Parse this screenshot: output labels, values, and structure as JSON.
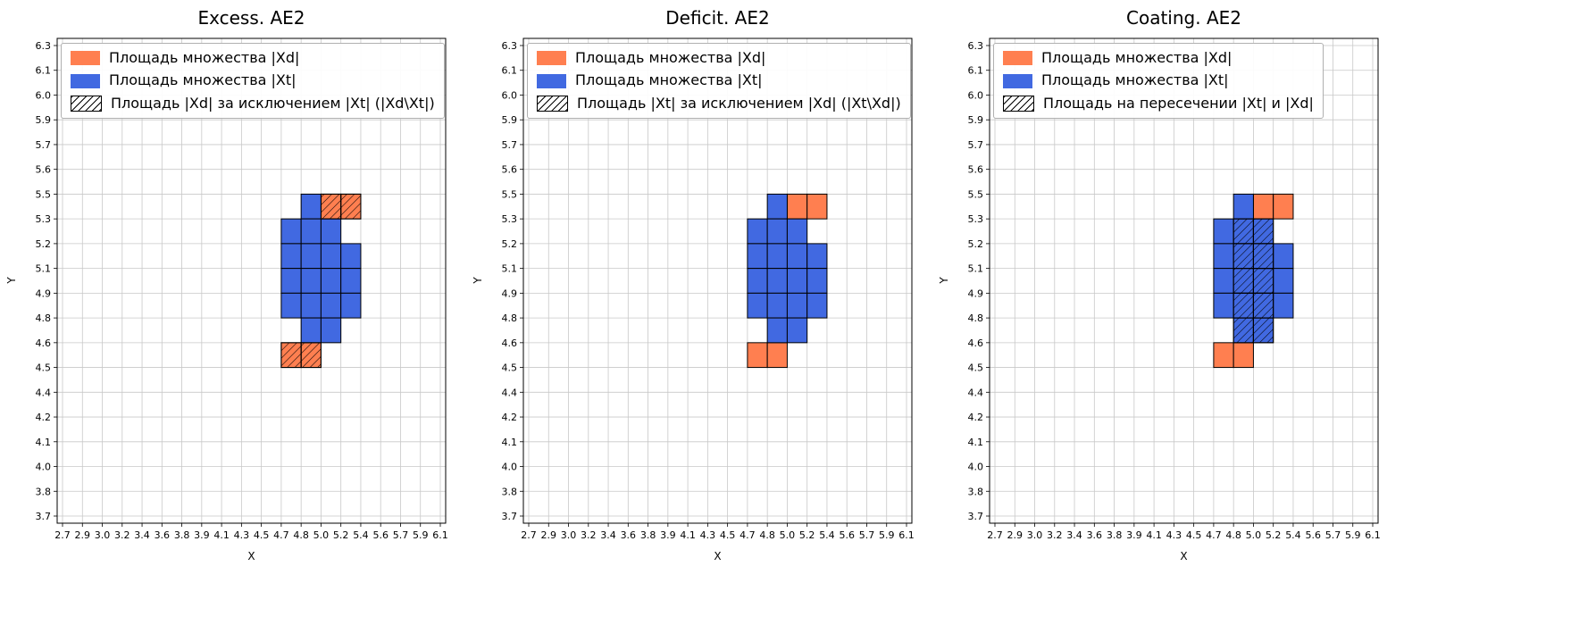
{
  "colors": {
    "xd_fill": "#ff7f50",
    "xt_fill": "#4169e1",
    "cell_edge": "#000000",
    "grid": "#c8c8c8",
    "spine": "#000000",
    "legend_border": "#b0b0b0",
    "background": "#ffffff"
  },
  "chart_data": [
    {
      "type": "heatmap",
      "title": "Excess. AE2",
      "xlabel": "X",
      "ylabel": "Y",
      "x_ticks": [
        2.7,
        2.9,
        3.0,
        3.2,
        3.4,
        3.6,
        3.8,
        3.9,
        4.1,
        4.3,
        4.5,
        4.7,
        4.8,
        5.0,
        5.2,
        5.4,
        5.6,
        5.7,
        5.9,
        6.1
      ],
      "y_ticks": [
        3.7,
        3.8,
        4.0,
        4.1,
        4.2,
        4.4,
        4.5,
        4.6,
        4.8,
        4.9,
        5.1,
        5.2,
        5.3,
        5.5,
        5.6,
        5.7,
        5.9,
        6.0,
        6.1,
        6.3
      ],
      "legend": [
        "Площадь множества |Xd|",
        "Площадь множества  |Xt|",
        "Площадь |Xd| за исключением |Xt| (|Xd\\Xt|)"
      ],
      "cell_format": "[col,row] indices into x_ticks/y_ticks; a cell spans tick[i]..tick[i+1]",
      "blue_cells": [
        [
          12,
          12
        ],
        [
          11,
          11
        ],
        [
          12,
          11
        ],
        [
          13,
          11
        ],
        [
          11,
          10
        ],
        [
          12,
          10
        ],
        [
          13,
          10
        ],
        [
          14,
          10
        ],
        [
          11,
          9
        ],
        [
          12,
          9
        ],
        [
          13,
          9
        ],
        [
          14,
          9
        ],
        [
          11,
          8
        ],
        [
          12,
          8
        ],
        [
          13,
          8
        ],
        [
          14,
          8
        ],
        [
          12,
          7
        ],
        [
          13,
          7
        ]
      ],
      "orange_cells": [
        [
          13,
          12
        ],
        [
          14,
          12
        ],
        [
          11,
          6
        ],
        [
          12,
          6
        ]
      ],
      "hatch_cells": [
        [
          13,
          12
        ],
        [
          14,
          12
        ],
        [
          11,
          6
        ],
        [
          12,
          6
        ]
      ],
      "grid": "on",
      "legend_position": "upper left"
    },
    {
      "type": "heatmap",
      "title": "Deficit. AE2",
      "xlabel": "X",
      "ylabel": "Y",
      "x_ticks": [
        2.7,
        2.9,
        3.0,
        3.2,
        3.4,
        3.6,
        3.8,
        3.9,
        4.1,
        4.3,
        4.5,
        4.7,
        4.8,
        5.0,
        5.2,
        5.4,
        5.6,
        5.7,
        5.9,
        6.1
      ],
      "y_ticks": [
        3.7,
        3.8,
        4.0,
        4.1,
        4.2,
        4.4,
        4.5,
        4.6,
        4.8,
        4.9,
        5.1,
        5.2,
        5.3,
        5.5,
        5.6,
        5.7,
        5.9,
        6.0,
        6.1,
        6.3
      ],
      "legend": [
        "Площадь множества |Xd|",
        "Площадь множества  |Xt|",
        "Площадь |Xt| за исключением |Xd| (|Xt\\Xd|)"
      ],
      "cell_format": "[col,row] indices into x_ticks/y_ticks; a cell spans tick[i]..tick[i+1]",
      "blue_cells": [
        [
          12,
          12
        ],
        [
          11,
          11
        ],
        [
          12,
          11
        ],
        [
          13,
          11
        ],
        [
          11,
          10
        ],
        [
          12,
          10
        ],
        [
          13,
          10
        ],
        [
          14,
          10
        ],
        [
          11,
          9
        ],
        [
          12,
          9
        ],
        [
          13,
          9
        ],
        [
          14,
          9
        ],
        [
          11,
          8
        ],
        [
          12,
          8
        ],
        [
          13,
          8
        ],
        [
          14,
          8
        ],
        [
          12,
          7
        ],
        [
          13,
          7
        ]
      ],
      "orange_cells": [
        [
          13,
          12
        ],
        [
          14,
          12
        ],
        [
          11,
          6
        ],
        [
          12,
          6
        ]
      ],
      "hatch_cells": [],
      "grid": "on",
      "legend_position": "upper left"
    },
    {
      "type": "heatmap",
      "title": "Coating. AE2",
      "xlabel": "X",
      "ylabel": "Y",
      "x_ticks": [
        2.7,
        2.9,
        3.0,
        3.2,
        3.4,
        3.6,
        3.8,
        3.9,
        4.1,
        4.3,
        4.5,
        4.7,
        4.8,
        5.0,
        5.2,
        5.4,
        5.6,
        5.7,
        5.9,
        6.1
      ],
      "y_ticks": [
        3.7,
        3.8,
        4.0,
        4.1,
        4.2,
        4.4,
        4.5,
        4.6,
        4.8,
        4.9,
        5.1,
        5.2,
        5.3,
        5.5,
        5.6,
        5.7,
        5.9,
        6.0,
        6.1,
        6.3
      ],
      "legend": [
        "Площадь множества |Xd|",
        "Площадь множества  |Xt|",
        "Площадь на пересечении |Xt| и |Xd|"
      ],
      "cell_format": "[col,row] indices into x_ticks/y_ticks; a cell spans tick[i]..tick[i+1]",
      "blue_cells": [
        [
          12,
          12
        ],
        [
          11,
          11
        ],
        [
          12,
          11
        ],
        [
          13,
          11
        ],
        [
          11,
          10
        ],
        [
          12,
          10
        ],
        [
          13,
          10
        ],
        [
          14,
          10
        ],
        [
          11,
          9
        ],
        [
          12,
          9
        ],
        [
          13,
          9
        ],
        [
          14,
          9
        ],
        [
          11,
          8
        ],
        [
          12,
          8
        ],
        [
          13,
          8
        ],
        [
          14,
          8
        ],
        [
          12,
          7
        ],
        [
          13,
          7
        ]
      ],
      "orange_cells": [
        [
          13,
          12
        ],
        [
          14,
          12
        ],
        [
          11,
          6
        ],
        [
          12,
          6
        ]
      ],
      "hatch_cells": [
        [
          12,
          11
        ],
        [
          13,
          11
        ],
        [
          12,
          10
        ],
        [
          13,
          10
        ],
        [
          12,
          9
        ],
        [
          13,
          9
        ],
        [
          12,
          8
        ],
        [
          13,
          8
        ],
        [
          12,
          7
        ],
        [
          13,
          7
        ]
      ],
      "grid": "on",
      "legend_position": "upper left"
    }
  ]
}
